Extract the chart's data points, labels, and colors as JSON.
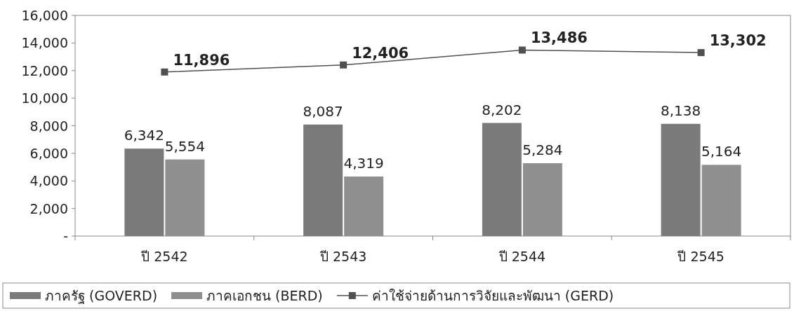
{
  "chart_data": {
    "type": "bar",
    "categories": [
      "ปี 2542",
      "ปี 2543",
      "ปี 2544",
      "ปี 2545"
    ],
    "series": [
      {
        "name": "ภาครัฐ (GOVERD)",
        "color": "#7a7a7a",
        "values": [
          6342,
          8087,
          8202,
          8138
        ],
        "value_labels": [
          "6,342",
          "8,087",
          "8,202",
          "8,138"
        ]
      },
      {
        "name": "ภาคเอกชน (BERD)",
        "color": "#8f8f8f",
        "values": [
          5554,
          4319,
          5284,
          5164
        ],
        "value_labels": [
          "5,554",
          "4,319",
          "5,284",
          "5,164"
        ]
      },
      {
        "name": "ค่าใช้จ่ายด้านการวิจัยและพัฒนา (GERD)",
        "type": "line",
        "color": "#505050",
        "marker": "square",
        "values": [
          11896,
          12406,
          13486,
          13302
        ],
        "value_labels": [
          "11,896",
          "12,406",
          "13,486",
          "13,302"
        ]
      }
    ],
    "ylim": [
      0,
      16000
    ],
    "yticks": [
      {
        "value": 0,
        "label": "-"
      },
      {
        "value": 2000,
        "label": "2,000"
      },
      {
        "value": 4000,
        "label": "4,000"
      },
      {
        "value": 6000,
        "label": "6,000"
      },
      {
        "value": 8000,
        "label": "8,000"
      },
      {
        "value": 10000,
        "label": "10,000"
      },
      {
        "value": 12000,
        "label": "12,000"
      },
      {
        "value": 14000,
        "label": "14,000"
      },
      {
        "value": 16000,
        "label": "16,000"
      }
    ],
    "legend": "bottom"
  }
}
